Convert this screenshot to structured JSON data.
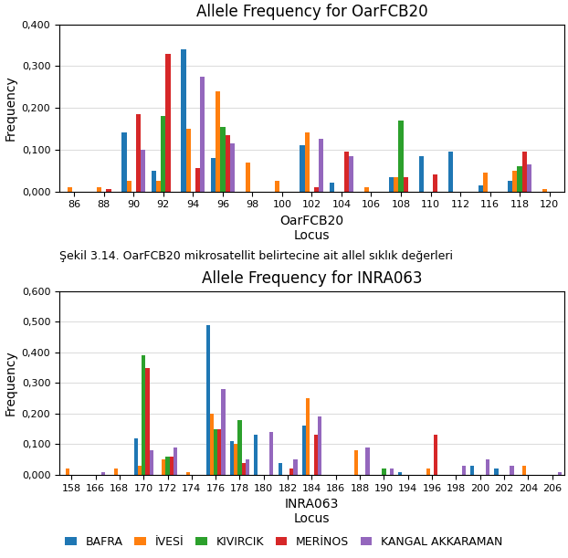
{
  "chart_data": [
    {
      "type": "bar",
      "title": "Allele Frequency for OarFCB20",
      "x_label": "OarFCB20\nLocus",
      "y_label": "Frequency",
      "categories": [
        "86",
        "88",
        "90",
        "92",
        "94",
        "96",
        "98",
        "100",
        "102",
        "104",
        "106",
        "108",
        "110",
        "112",
        "116",
        "118",
        "120"
      ],
      "series": [
        {
          "name": "BAFRA",
          "values": [
            0.0,
            0.0,
            0.14,
            0.05,
            0.34,
            0.08,
            0.0,
            0.0,
            0.11,
            0.02,
            0.0,
            0.035,
            0.085,
            0.095,
            0.015,
            0.025,
            0.0
          ]
        },
        {
          "name": "İVESİ",
          "values": [
            0.01,
            0.01,
            0.025,
            0.025,
            0.15,
            0.24,
            0.07,
            0.025,
            0.14,
            0.0,
            0.01,
            0.035,
            0.0,
            0.0,
            0.045,
            0.05,
            0.005
          ]
        },
        {
          "name": "KIVIRCIK",
          "values": [
            0.0,
            0.0,
            0.0,
            0.18,
            0.0,
            0.155,
            0.0,
            0.0,
            0.0,
            0.0,
            0.0,
            0.17,
            0.0,
            0.0,
            0.0,
            0.06,
            0.0
          ]
        },
        {
          "name": "MERİNOS",
          "values": [
            0.0,
            0.005,
            0.185,
            0.33,
            0.055,
            0.135,
            0.0,
            0.0,
            0.01,
            0.095,
            0.0,
            0.035,
            0.04,
            0.0,
            0.0,
            0.095,
            0.0
          ]
        },
        {
          "name": "KANGAL AKKARAMAN",
          "values": [
            0.0,
            0.0,
            0.1,
            0.0,
            0.275,
            0.115,
            0.0,
            0.0,
            0.125,
            0.085,
            0.0,
            0.0,
            0.0,
            0.0,
            0.0,
            0.065,
            0.0
          ]
        }
      ],
      "ylim": [
        0,
        0.4
      ],
      "yticks": [
        {
          "value": 0.0,
          "label": "0,000"
        },
        {
          "value": 0.1,
          "label": "0,100"
        },
        {
          "value": 0.2,
          "label": "0,200"
        },
        {
          "value": 0.3,
          "label": "0,300"
        },
        {
          "value": 0.4,
          "label": "0,400"
        }
      ],
      "grid": true,
      "annotations": [
        "Şekil 3.14. OarFCB20 mikrosatellit belirtecine ait allel sıklık değerleri"
      ]
    },
    {
      "type": "bar",
      "title": "Allele Frequency for INRA063",
      "x_label": "INRA063\nLocus",
      "y_label": "Frequency",
      "categories": [
        "158",
        "166",
        "168",
        "170",
        "172",
        "174",
        "176",
        "178",
        "180",
        "182",
        "184",
        "186",
        "188",
        "190",
        "194",
        "196",
        "198",
        "200",
        "202",
        "204",
        "206"
      ],
      "series": [
        {
          "name": "BAFRA",
          "values": [
            0.0,
            0.0,
            0.0,
            0.12,
            0.0,
            0.0,
            0.49,
            0.11,
            0.13,
            0.04,
            0.16,
            0.0,
            0.0,
            0.0,
            0.01,
            0.0,
            0.0,
            0.03,
            0.02,
            0.0,
            0.0
          ]
        },
        {
          "name": "İVESİ",
          "values": [
            0.02,
            0.0,
            0.02,
            0.03,
            0.05,
            0.01,
            0.2,
            0.1,
            0.0,
            0.0,
            0.25,
            0.0,
            0.08,
            0.0,
            0.0,
            0.02,
            0.0,
            0.0,
            0.0,
            0.03,
            0.0
          ]
        },
        {
          "name": "KIVIRCIK",
          "values": [
            0.0,
            0.0,
            0.0,
            0.39,
            0.06,
            0.0,
            0.15,
            0.18,
            0.0,
            0.0,
            0.0,
            0.0,
            0.0,
            0.02,
            0.0,
            0.0,
            0.0,
            0.0,
            0.0,
            0.0,
            0.0
          ]
        },
        {
          "name": "MERİNOS",
          "values": [
            0.0,
            0.0,
            0.0,
            0.35,
            0.06,
            0.0,
            0.15,
            0.04,
            0.0,
            0.02,
            0.13,
            0.0,
            0.0,
            0.0,
            0.0,
            0.13,
            0.0,
            0.0,
            0.0,
            0.0,
            0.0
          ]
        },
        {
          "name": "KANGAL AKKARAMAN",
          "values": [
            0.0,
            0.01,
            0.0,
            0.08,
            0.09,
            0.0,
            0.28,
            0.05,
            0.14,
            0.05,
            0.19,
            0.0,
            0.09,
            0.02,
            0.0,
            0.0,
            0.03,
            0.05,
            0.03,
            0.0,
            0.01
          ]
        }
      ],
      "ylim": [
        0,
        0.6
      ],
      "yticks": [
        {
          "value": 0.0,
          "label": "0,000"
        },
        {
          "value": 0.1,
          "label": "0,100"
        },
        {
          "value": 0.2,
          "label": "0,200"
        },
        {
          "value": 0.3,
          "label": "0,300"
        },
        {
          "value": 0.4,
          "label": "0,400"
        },
        {
          "value": 0.5,
          "label": "0,500"
        },
        {
          "value": 0.6,
          "label": "0,600"
        }
      ],
      "grid": true,
      "legend": "lower center"
    }
  ]
}
